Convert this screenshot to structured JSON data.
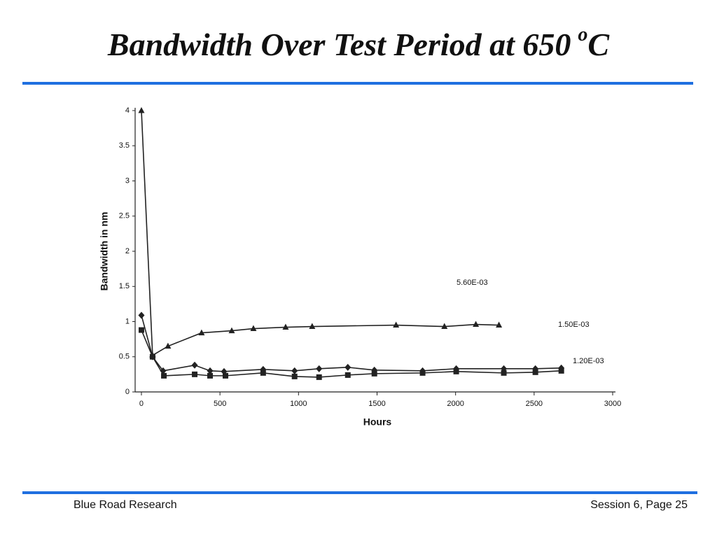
{
  "slide": {
    "title": "Bandwidth Over Test Period at 650",
    "title_superscript": "o",
    "title_unit": "C"
  },
  "footer": {
    "left": "Blue Road Research",
    "right": "Session 6, Page 25"
  },
  "chart_data": {
    "type": "line",
    "xlabel": "Hours",
    "ylabel": "Bandwidth in nm",
    "xlim": [
      -40,
      3000
    ],
    "xticks": [
      0,
      500,
      1000,
      1500,
      2000,
      2500,
      3000
    ],
    "ylim": [
      0,
      4
    ],
    "yticks": [
      0,
      0.5,
      1,
      1.5,
      2,
      2.5,
      3,
      3.5,
      4
    ],
    "grid": false,
    "series": [
      {
        "name": "5.60E-03",
        "color": "#222222",
        "marker": "triangle",
        "x": [
          0,
          71,
          169,
          383,
          575,
          713,
          918,
          1087,
          1621,
          1929,
          2129,
          2276
        ],
        "values": [
          4.0,
          0.52,
          0.65,
          0.84,
          0.87,
          0.9,
          0.92,
          0.93,
          0.95,
          0.93,
          0.96,
          0.95
        ]
      },
      {
        "name": "1.50E-03",
        "color": "#222222",
        "marker": "diamond",
        "x": [
          0,
          71,
          138,
          339,
          437,
          526,
          775,
          975,
          1131,
          1314,
          1483,
          1790,
          2004,
          2307,
          2508,
          2673
        ],
        "values": [
          1.09,
          0.5,
          0.3,
          0.38,
          0.3,
          0.29,
          0.32,
          0.3,
          0.33,
          0.35,
          0.31,
          0.3,
          0.33,
          0.33,
          0.33,
          0.34
        ]
      },
      {
        "name": "1.20E-03",
        "color": "#222222",
        "marker": "square",
        "x": [
          0,
          71,
          143,
          339,
          437,
          535,
          775,
          975,
          1131,
          1314,
          1483,
          1790,
          2004,
          2307,
          2508,
          2673
        ],
        "values": [
          0.88,
          0.5,
          0.23,
          0.25,
          0.23,
          0.23,
          0.27,
          0.22,
          0.21,
          0.24,
          0.26,
          0.27,
          0.29,
          0.27,
          0.28,
          0.3
        ]
      }
    ]
  }
}
